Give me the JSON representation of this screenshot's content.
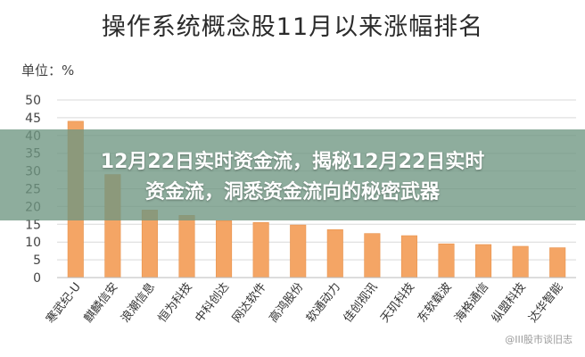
{
  "chart_data": {
    "type": "bar",
    "title": "操作系统概念股11月以来涨幅排名",
    "unit_label": "单位：%",
    "categories": [
      "寒武纪-U",
      "麒麟信安",
      "浪潮信息",
      "恒为科技",
      "中科创达",
      "网达软件",
      "高鸿股份",
      "软通动力",
      "佳创视讯",
      "天玑科技",
      "东软载波",
      "海格通信",
      "纵盟科技",
      "达华智能"
    ],
    "values": [
      44.0,
      29.0,
      19.0,
      17.5,
      16.0,
      15.5,
      14.8,
      13.5,
      12.4,
      11.8,
      9.5,
      9.3,
      8.8,
      8.4
    ],
    "ylim": [
      0,
      50
    ],
    "yticks": [
      0,
      5,
      10,
      15,
      20,
      25,
      30,
      35,
      40,
      45,
      50
    ],
    "grid": true,
    "bar_color": "#f4a565"
  },
  "banner": {
    "line1": "12月22日实时资金流，揭秘12月22日实时",
    "line2": "资金流，洞悉资金流向的秘密武器"
  },
  "watermark": "@III股市谈旧志"
}
